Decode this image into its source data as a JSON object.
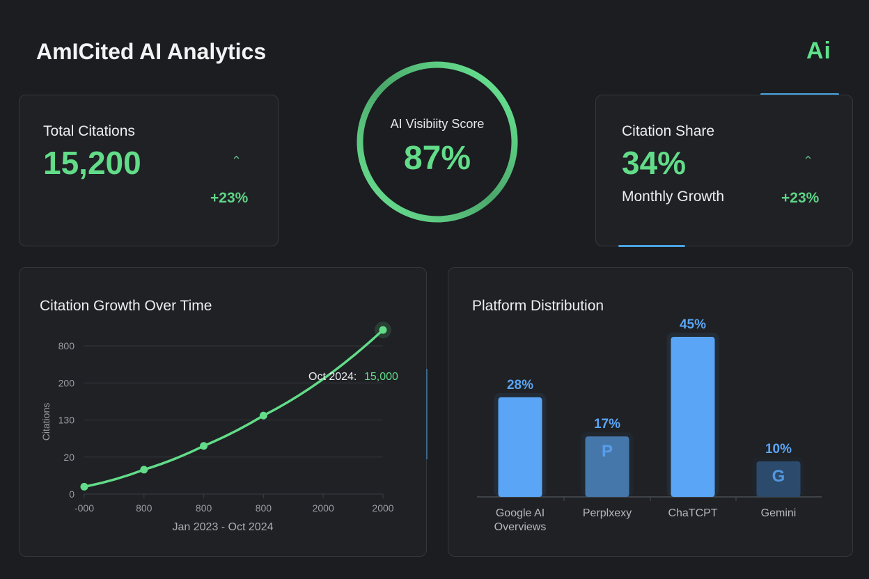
{
  "header": {
    "title": "AmICited AI Analytics",
    "logo_text": "Ai"
  },
  "colors": {
    "accent_green": "#62dc88",
    "accent_blue": "#5aa5f5",
    "background": "#1b1d21"
  },
  "total_citations": {
    "label": "Total Citations",
    "value": "15,200",
    "change": "+23%",
    "trend_icon": "chevron-up-icon"
  },
  "visibility": {
    "label": "AI Visibiity Score",
    "value": "87%",
    "score_percent": 87
  },
  "citation_share": {
    "label": "Citation Share",
    "value": "34%",
    "sub_label": "Monthly Growth",
    "change": "+23%",
    "trend_icon": "chevron-up-icon"
  },
  "chart_data": [
    {
      "type": "line",
      "title": "Citation Growth Over Time",
      "xlabel": "Jan 2023 - Oct 2024",
      "ylabel": "Citations",
      "x_ticks": [
        "-000",
        "800",
        "800",
        "800",
        "2000",
        "2000"
      ],
      "y_ticks": [
        "0",
        "20",
        "130",
        "200",
        "800"
      ],
      "grid": true,
      "points": [
        {
          "x_tick_index": 0,
          "y_tick_index": 0.2
        },
        {
          "x_tick_index": 1,
          "y_tick_index": 0.66
        },
        {
          "x_tick_index": 2,
          "y_tick_index": 1.3
        },
        {
          "x_tick_index": 3,
          "y_tick_index": 2.12
        },
        {
          "x_tick_index": 5,
          "y_tick_index": 4.43
        }
      ],
      "annotation": {
        "label": "Oct 2024:",
        "value": "15,000"
      },
      "color": "#62dc88"
    },
    {
      "type": "bar",
      "title": "Platform Distribution",
      "categories": [
        "Google AI Overviews",
        "Perplxexy",
        "ChaTCPT",
        "Gemini"
      ],
      "category_lines": [
        [
          "Google AI",
          "Overviews"
        ],
        [
          "Perplxexy"
        ],
        [
          "ChaTCPT"
        ],
        [
          "Gemini"
        ]
      ],
      "values": [
        28,
        17,
        45,
        10
      ],
      "value_labels": [
        "28%",
        "17%",
        "45%",
        "10%"
      ],
      "bar_colors": [
        "#5aa5f5",
        "#4677ab",
        "#5aa5f5",
        "#2c4a6b"
      ],
      "bar_icons": [
        "",
        "perplexity-logo-icon",
        "",
        "google-g-icon"
      ],
      "ylim": [
        0,
        45
      ],
      "grid": false
    }
  ]
}
